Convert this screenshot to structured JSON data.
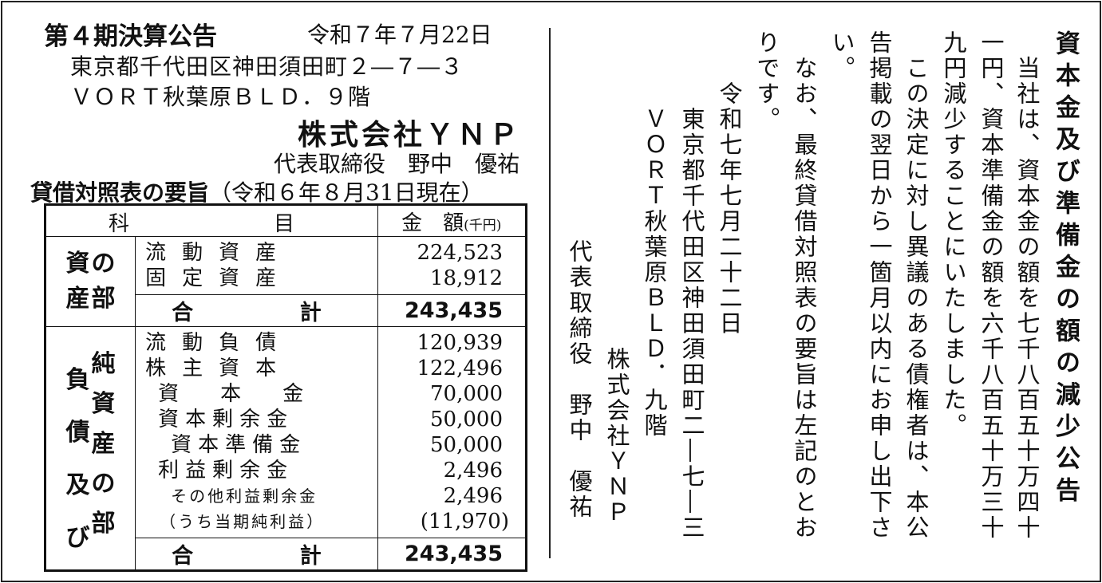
{
  "header": {
    "title": "第４期決算公告",
    "date": "令和７年７月22日",
    "address_line1": "東京都千代田区神田須田町２―７―３",
    "address_line2": "ＶＯＲＴ秋葉原ＢＬＤ．９階",
    "company": "株式会社ＹＮＰ",
    "representative": "代表取締役　野中　優祐"
  },
  "balance_sheet": {
    "title": "貸借対照表の要旨",
    "as_of": "（令和６年８月31日現在）",
    "col_item_left": "科",
    "col_item_right": "目",
    "col_amount": "金　額",
    "col_unit": "(千円)",
    "assets_section": {
      "col1": [
        "資",
        "産"
      ],
      "col2": [
        "の",
        "部"
      ]
    },
    "assets_rows": [
      {
        "label": "流動資産",
        "value": "224,523"
      },
      {
        "label": "固定資産",
        "value": "18,912"
      }
    ],
    "assets_total": {
      "label_left": "合",
      "label_right": "計",
      "value": "243,435"
    },
    "liab_section": {
      "col1": [
        "負",
        "債",
        "及",
        "び"
      ],
      "col2": [
        "純",
        "資",
        "産",
        "の",
        "部"
      ]
    },
    "liab_rows": [
      {
        "label": "流動負債",
        "value": "120,939"
      },
      {
        "label": "株主資本",
        "value": "122,496"
      },
      {
        "label": "資　　本　　金",
        "value": "70,000"
      },
      {
        "label": "資本剰余金",
        "value": "50,000"
      },
      {
        "label": "資本準備金",
        "value": "50,000"
      },
      {
        "label": "利益剰余金",
        "value": "2,496"
      },
      {
        "label": "その他利益剰余金",
        "value": "2,496"
      },
      {
        "label": "（うち当期純利益）",
        "value": "(11,970)"
      }
    ],
    "liab_total": {
      "label_left": "合",
      "label_right": "計",
      "value": "243,435"
    }
  },
  "notice": {
    "title": "資本金及び準備金の額の減少公告",
    "columns": [
      "　当社は、資本金の額を七千八百五十万四十",
      "一円、資本準備金の額を六千八百五十万三十",
      "九円減少することにいたしました。",
      "　この決定に対し異議のある債権者は、本公",
      "告掲載の翌日から一箇月以内にお申し出下さ",
      "い。",
      "　なお、最終貸借対照表の要旨は左記のとお",
      "りです。",
      "　　令和七年七月二十二日",
      "　　　東京都千代田区神田須田町二―七―三",
      "　　　ＶＯＲＴ秋葉原ＢＬＤ．九階",
      "株式会社ＹＮＰ",
      "代表取締役　野中　優祐"
    ]
  }
}
